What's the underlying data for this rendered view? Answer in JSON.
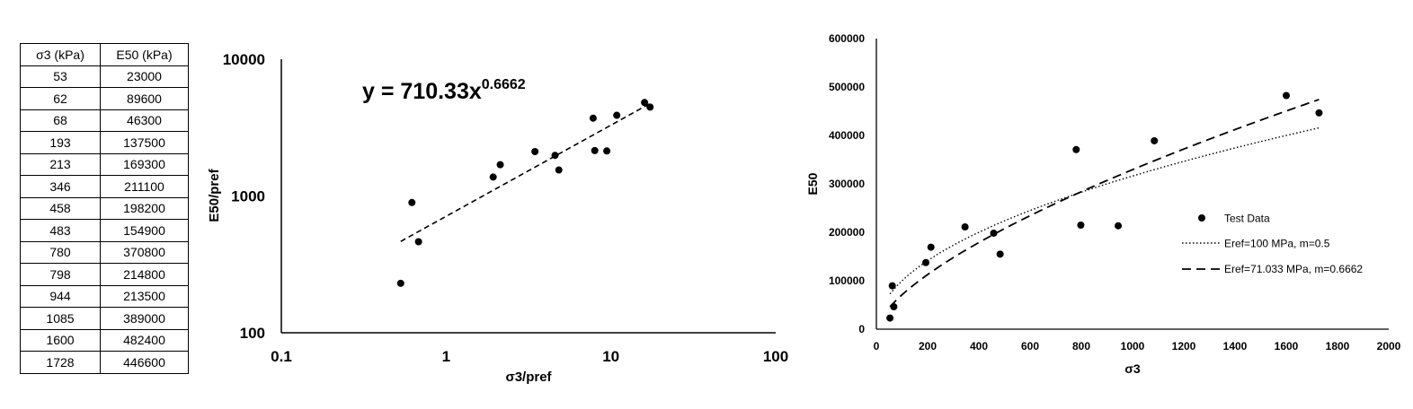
{
  "table": {
    "headers": [
      "σ3 (kPa)",
      "E50 (kPa)"
    ],
    "rows": [
      [
        "53",
        "23000"
      ],
      [
        "62",
        "89600"
      ],
      [
        "68",
        "46300"
      ],
      [
        "193",
        "137500"
      ],
      [
        "213",
        "169300"
      ],
      [
        "346",
        "211100"
      ],
      [
        "458",
        "198200"
      ],
      [
        "483",
        "154900"
      ],
      [
        "780",
        "370800"
      ],
      [
        "798",
        "214800"
      ],
      [
        "944",
        "213500"
      ],
      [
        "1085",
        "389000"
      ],
      [
        "1600",
        "482400"
      ],
      [
        "1728",
        "446600"
      ]
    ]
  },
  "chart_data": [
    {
      "type": "scatter",
      "xscale": "log",
      "yscale": "log",
      "xlabel": "σ3/pref",
      "ylabel": "E50/pref",
      "xlim": [
        0.1,
        100
      ],
      "ylim": [
        100,
        10000
      ],
      "xticks": [
        "0.1",
        "1",
        "10",
        "100"
      ],
      "yticks": [
        "100",
        "1000",
        "10000"
      ],
      "annotation": {
        "base": "y = 710.33x",
        "exponent": "0.6662"
      },
      "trendline": {
        "coef": 710.33,
        "exponent": 0.6662,
        "x_range": [
          0.53,
          17.28
        ],
        "style": "dashed"
      },
      "points": [
        {
          "x": 0.53,
          "y": 230
        },
        {
          "x": 0.62,
          "y": 896
        },
        {
          "x": 0.68,
          "y": 463
        },
        {
          "x": 1.93,
          "y": 1375
        },
        {
          "x": 2.13,
          "y": 1693
        },
        {
          "x": 3.46,
          "y": 2111
        },
        {
          "x": 4.58,
          "y": 1982
        },
        {
          "x": 4.83,
          "y": 1549
        },
        {
          "x": 7.8,
          "y": 3708
        },
        {
          "x": 7.98,
          "y": 2148
        },
        {
          "x": 9.44,
          "y": 2135
        },
        {
          "x": 10.85,
          "y": 3890
        },
        {
          "x": 16.0,
          "y": 4824
        },
        {
          "x": 17.28,
          "y": 4466
        }
      ],
      "grid": false,
      "legend": "none"
    },
    {
      "type": "scatter",
      "xlabel": "σ3",
      "ylabel": "E50",
      "xlim": [
        0,
        2000
      ],
      "ylim": [
        0,
        600000
      ],
      "xticks": [
        "0",
        "200",
        "400",
        "600",
        "800",
        "1000",
        "1200",
        "1400",
        "1600",
        "1800",
        "2000"
      ],
      "yticks": [
        "0",
        "100000",
        "200000",
        "300000",
        "400000",
        "500000",
        "600000"
      ],
      "points": [
        {
          "x": 53,
          "y": 23000
        },
        {
          "x": 62,
          "y": 89600
        },
        {
          "x": 68,
          "y": 46300
        },
        {
          "x": 193,
          "y": 137500
        },
        {
          "x": 213,
          "y": 169300
        },
        {
          "x": 346,
          "y": 211100
        },
        {
          "x": 458,
          "y": 198200
        },
        {
          "x": 483,
          "y": 154900
        },
        {
          "x": 780,
          "y": 370800
        },
        {
          "x": 798,
          "y": 214800
        },
        {
          "x": 944,
          "y": 213500
        },
        {
          "x": 1085,
          "y": 389000
        },
        {
          "x": 1600,
          "y": 482400
        },
        {
          "x": 1728,
          "y": 446600
        }
      ],
      "series": [
        {
          "name": "Test Data",
          "style": "marker"
        },
        {
          "name": "Eref=100 MPa, m=0.5",
          "style": "dotted",
          "eref_kpa": 100000,
          "m": 0.5
        },
        {
          "name": "Eref=71.033 MPa, m=0.6662",
          "style": "dashed",
          "eref_kpa": 71033,
          "m": 0.6662
        }
      ],
      "pref": 100,
      "curve_x_range": [
        53,
        1728
      ],
      "grid": false,
      "legend": "right"
    }
  ]
}
